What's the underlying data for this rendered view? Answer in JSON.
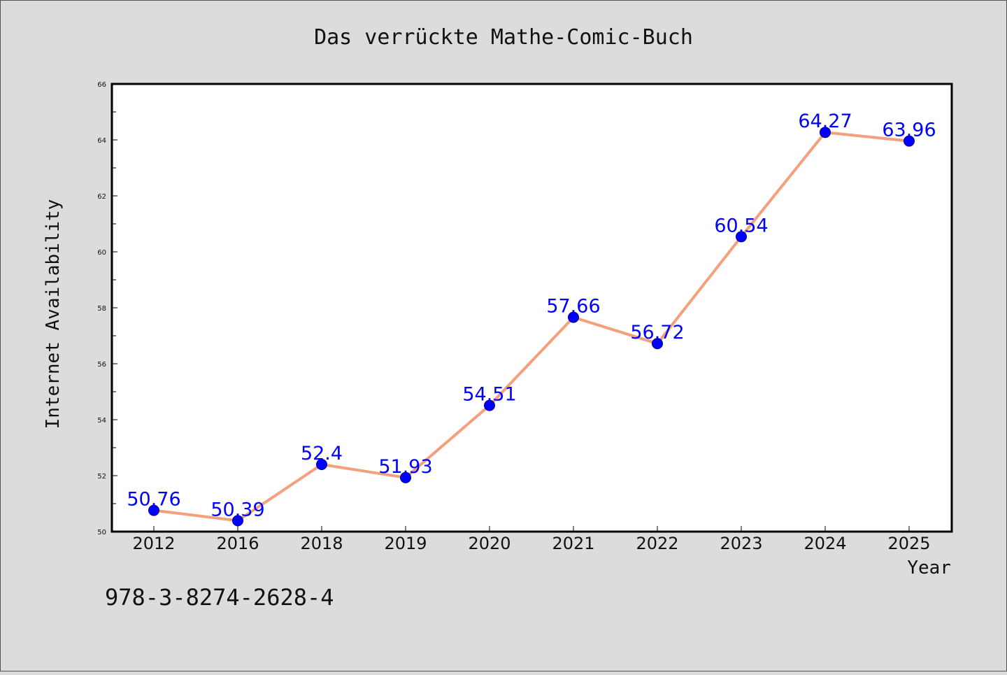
{
  "chart_data": {
    "type": "line",
    "title": "Das verrückte Mathe-Comic-Buch",
    "xlabel": "Year",
    "ylabel": "Internet Availability",
    "categories": [
      "2012",
      "2016",
      "2018",
      "2019",
      "2020",
      "2021",
      "2022",
      "2023",
      "2024",
      "2025"
    ],
    "series": [
      {
        "values": [
          50.76,
          50.39,
          52.4,
          51.93,
          54.51,
          57.66,
          56.72,
          60.54,
          64.27,
          63.96
        ],
        "data_labels": [
          "50.76",
          "50.39",
          "52.4",
          "51.93",
          "54.51",
          "57.66",
          "56.72",
          "60.54",
          "64.27",
          "63.96"
        ]
      }
    ],
    "ylim": [
      50,
      66
    ],
    "yticks": [
      "50",
      "52",
      "54",
      "56",
      "58",
      "60",
      "62",
      "64",
      "66"
    ],
    "grid": false,
    "legend": "none",
    "colors": {
      "line": "#f4a07c",
      "marker": "#0000ff",
      "data_label": "#0000ff",
      "plot_background": "#ffffff",
      "figure_background": "#dcdcdc"
    }
  },
  "footer": {
    "isbn": "978-3-8274-2628-4"
  }
}
